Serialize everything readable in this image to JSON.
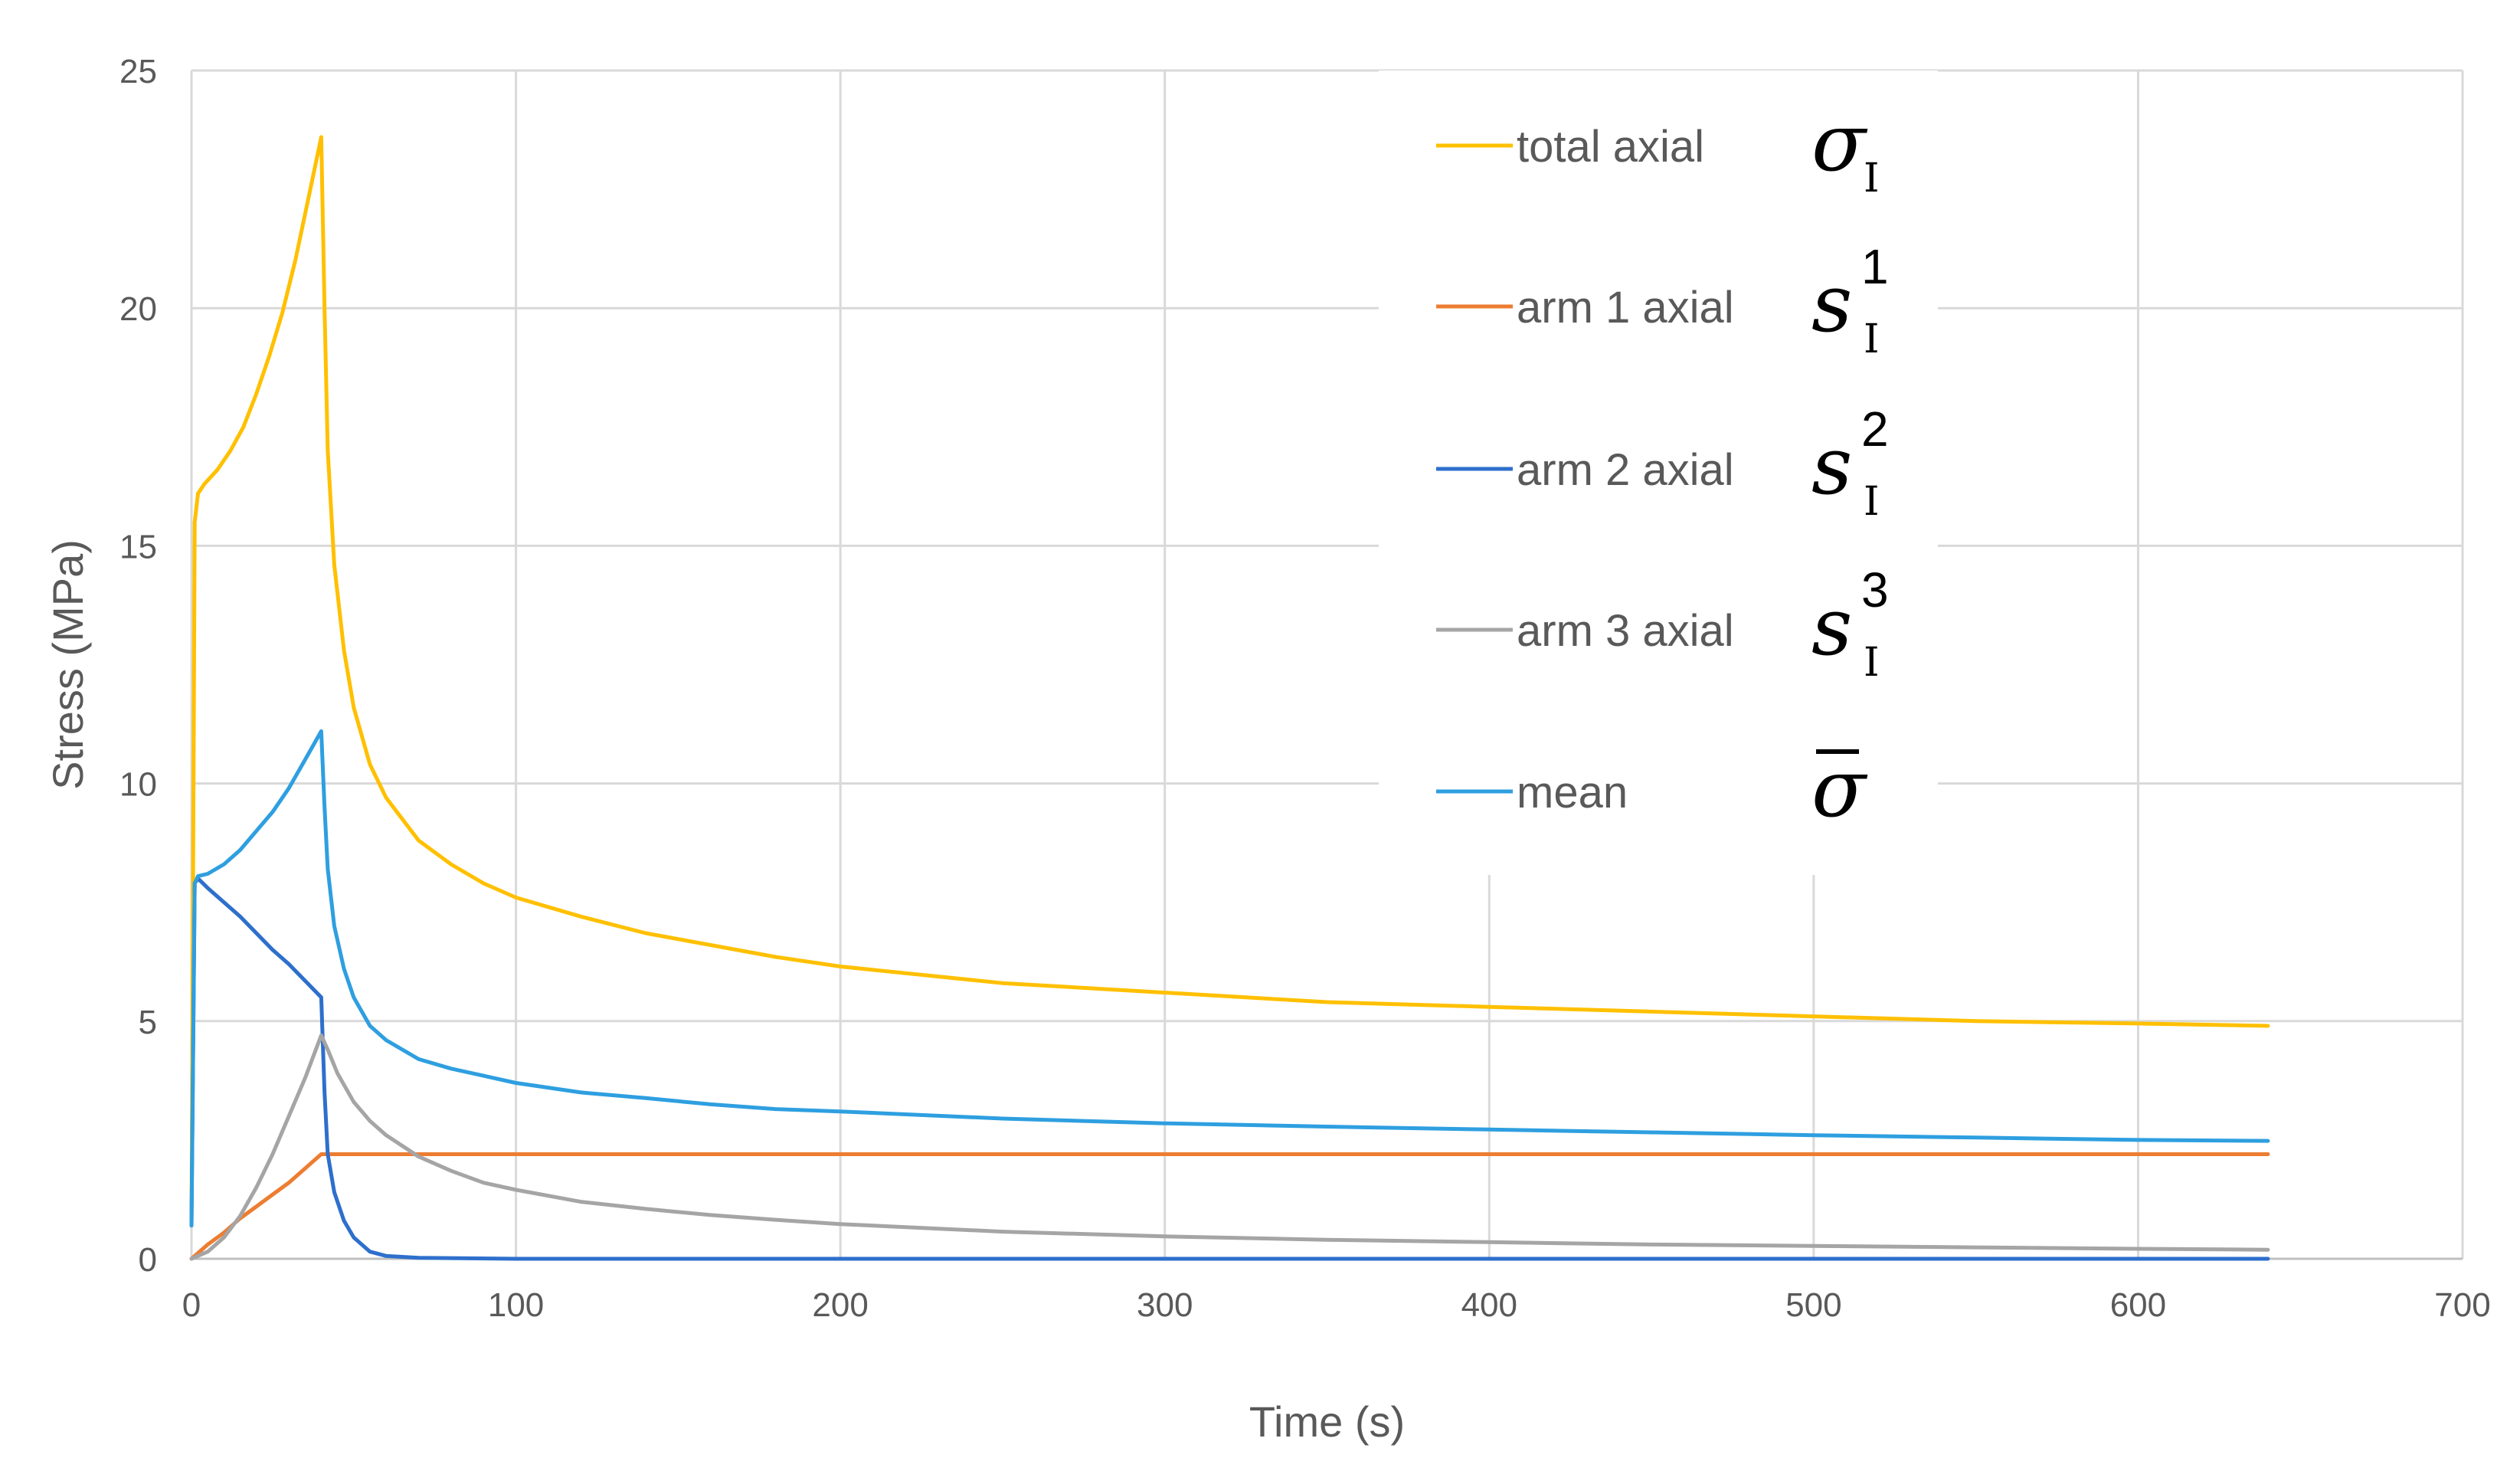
{
  "chart_data": {
    "type": "line",
    "title": "",
    "xlabel": "Time (s)",
    "ylabel": "Stress (MPa)",
    "xlim": [
      0,
      700
    ],
    "ylim": [
      0,
      25
    ],
    "x_ticks": [
      "0",
      "100",
      "200",
      "300",
      "400",
      "500",
      "600",
      "700"
    ],
    "y_ticks": [
      "0",
      "5",
      "10",
      "15",
      "20",
      "25"
    ],
    "grid": true,
    "legend_position": "top-right",
    "series": [
      {
        "name": "total axial",
        "symbol": "σ",
        "symbol_sub": "I",
        "symbol_sup": "",
        "color": "#FFC000",
        "points": [
          [
            0,
            0.7
          ],
          [
            1,
            15.5
          ],
          [
            2,
            16.1
          ],
          [
            4,
            16.3
          ],
          [
            8,
            16.6
          ],
          [
            12,
            17.0
          ],
          [
            16,
            17.5
          ],
          [
            20,
            18.2
          ],
          [
            24,
            19.0
          ],
          [
            28,
            19.9
          ],
          [
            32,
            21.0
          ],
          [
            36,
            22.3
          ],
          [
            40,
            23.6
          ],
          [
            41,
            20.0
          ],
          [
            42,
            17.0
          ],
          [
            44,
            14.6
          ],
          [
            47,
            12.8
          ],
          [
            50,
            11.6
          ],
          [
            55,
            10.4
          ],
          [
            60,
            9.7
          ],
          [
            70,
            8.8
          ],
          [
            80,
            8.3
          ],
          [
            90,
            7.9
          ],
          [
            100,
            7.6
          ],
          [
            120,
            7.2
          ],
          [
            140,
            6.85
          ],
          [
            160,
            6.6
          ],
          [
            180,
            6.35
          ],
          [
            200,
            6.15
          ],
          [
            250,
            5.8
          ],
          [
            300,
            5.6
          ],
          [
            350,
            5.4
          ],
          [
            400,
            5.3
          ],
          [
            450,
            5.2
          ],
          [
            500,
            5.1
          ],
          [
            550,
            5.0
          ],
          [
            600,
            4.95
          ],
          [
            640,
            4.9
          ]
        ]
      },
      {
        "name": "arm 1 axial",
        "symbol": "s",
        "symbol_sub": "I",
        "symbol_sup": "1",
        "color": "#ED7D31",
        "points": [
          [
            0,
            0
          ],
          [
            5,
            0.3
          ],
          [
            10,
            0.55
          ],
          [
            15,
            0.85
          ],
          [
            20,
            1.1
          ],
          [
            25,
            1.35
          ],
          [
            30,
            1.6
          ],
          [
            35,
            1.9
          ],
          [
            40,
            2.2
          ],
          [
            42,
            2.2
          ],
          [
            100,
            2.2
          ],
          [
            200,
            2.2
          ],
          [
            300,
            2.2
          ],
          [
            400,
            2.2
          ],
          [
            500,
            2.2
          ],
          [
            600,
            2.2
          ],
          [
            640,
            2.2
          ]
        ]
      },
      {
        "name": "arm 2 axial",
        "symbol": "s",
        "symbol_sub": "I",
        "symbol_sup": "2",
        "color": "#2E6FCC",
        "points": [
          [
            0,
            0.7
          ],
          [
            1,
            7.9
          ],
          [
            2,
            8.0
          ],
          [
            5,
            7.8
          ],
          [
            10,
            7.5
          ],
          [
            15,
            7.2
          ],
          [
            20,
            6.85
          ],
          [
            25,
            6.5
          ],
          [
            30,
            6.2
          ],
          [
            35,
            5.85
          ],
          [
            40,
            5.5
          ],
          [
            41,
            3.5
          ],
          [
            42,
            2.2
          ],
          [
            44,
            1.4
          ],
          [
            47,
            0.8
          ],
          [
            50,
            0.45
          ],
          [
            55,
            0.15
          ],
          [
            60,
            0.06
          ],
          [
            70,
            0.02
          ],
          [
            100,
            0
          ],
          [
            200,
            0
          ],
          [
            300,
            0
          ],
          [
            400,
            0
          ],
          [
            500,
            0
          ],
          [
            600,
            0
          ],
          [
            640,
            0
          ]
        ]
      },
      {
        "name": "arm 3 axial",
        "symbol": "s",
        "symbol_sub": "I",
        "symbol_sup": "3",
        "color": "#A5A5A5",
        "points": [
          [
            0,
            0
          ],
          [
            5,
            0.15
          ],
          [
            10,
            0.45
          ],
          [
            15,
            0.9
          ],
          [
            20,
            1.5
          ],
          [
            25,
            2.2
          ],
          [
            30,
            3.0
          ],
          [
            35,
            3.8
          ],
          [
            40,
            4.7
          ],
          [
            42,
            4.4
          ],
          [
            45,
            3.9
          ],
          [
            50,
            3.3
          ],
          [
            55,
            2.9
          ],
          [
            60,
            2.6
          ],
          [
            70,
            2.15
          ],
          [
            80,
            1.85
          ],
          [
            90,
            1.6
          ],
          [
            100,
            1.45
          ],
          [
            120,
            1.2
          ],
          [
            140,
            1.05
          ],
          [
            160,
            0.92
          ],
          [
            180,
            0.82
          ],
          [
            200,
            0.73
          ],
          [
            250,
            0.57
          ],
          [
            300,
            0.47
          ],
          [
            350,
            0.4
          ],
          [
            400,
            0.35
          ],
          [
            450,
            0.3
          ],
          [
            500,
            0.27
          ],
          [
            550,
            0.24
          ],
          [
            600,
            0.21
          ],
          [
            640,
            0.19
          ]
        ]
      },
      {
        "name": "mean",
        "symbol": "σ̄",
        "symbol_sub": "",
        "symbol_sup": "",
        "color": "#2E9FE0",
        "points": [
          [
            0,
            0.7
          ],
          [
            1,
            7.9
          ],
          [
            2,
            8.05
          ],
          [
            5,
            8.1
          ],
          [
            10,
            8.3
          ],
          [
            15,
            8.6
          ],
          [
            20,
            9.0
          ],
          [
            25,
            9.4
          ],
          [
            30,
            9.9
          ],
          [
            35,
            10.5
          ],
          [
            40,
            11.1
          ],
          [
            41,
            9.5
          ],
          [
            42,
            8.2
          ],
          [
            44,
            7.0
          ],
          [
            47,
            6.1
          ],
          [
            50,
            5.5
          ],
          [
            55,
            4.9
          ],
          [
            60,
            4.6
          ],
          [
            70,
            4.2
          ],
          [
            80,
            4.0
          ],
          [
            90,
            3.85
          ],
          [
            100,
            3.7
          ],
          [
            120,
            3.5
          ],
          [
            140,
            3.38
          ],
          [
            160,
            3.25
          ],
          [
            180,
            3.15
          ],
          [
            200,
            3.1
          ],
          [
            250,
            2.95
          ],
          [
            300,
            2.85
          ],
          [
            350,
            2.78
          ],
          [
            400,
            2.72
          ],
          [
            450,
            2.66
          ],
          [
            500,
            2.6
          ],
          [
            550,
            2.55
          ],
          [
            600,
            2.5
          ],
          [
            640,
            2.48
          ]
        ]
      }
    ]
  }
}
